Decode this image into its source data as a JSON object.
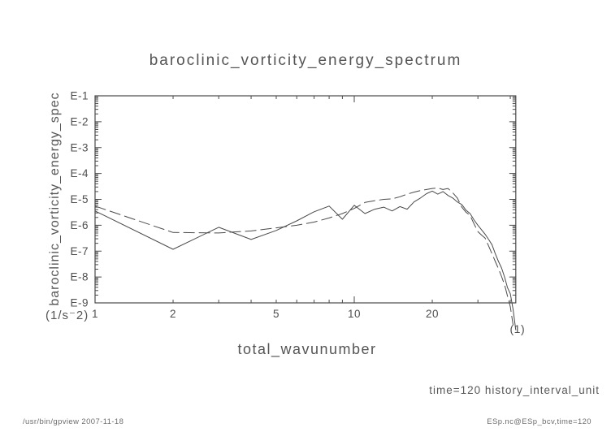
{
  "page": {
    "background": "#ffffff",
    "line_color": "#4a4a4a",
    "text_color": "#555555"
  },
  "footer": {
    "left": "/usr/bin/gpview  2007-11-18",
    "right": "ESp.nc@ESp_bcv,time=120"
  },
  "chart_data": {
    "type": "line",
    "title": "baroclinic_vorticity_energy_spectrum",
    "xlabel": "total_wavunumber",
    "ylabel": "baroclinic_vorticity_energy_spec",
    "x_unit_label": "(1)",
    "y_unit_label": "(1/s⁻2)",
    "annotation": "time=120 history_interval_unit",
    "x_scale": "log",
    "y_scale": "log",
    "x_range": [
      1,
      42
    ],
    "y_range_exponents": [
      -1,
      -9
    ],
    "grid": false,
    "legend": "none",
    "x_tick_labels": [
      {
        "label": "1",
        "value": 1
      },
      {
        "label": "2",
        "value": 2
      },
      {
        "label": "5",
        "value": 5
      },
      {
        "label": "10",
        "value": 10
      },
      {
        "label": "20",
        "value": 20
      }
    ],
    "x_major_ticks": [
      10
    ],
    "x_minor_ticks": [
      2,
      3,
      4,
      5,
      6,
      7,
      8,
      9,
      20,
      30,
      40
    ],
    "y_tick_labels": [
      {
        "label": "E-1",
        "exponent": -1
      },
      {
        "label": "E-2",
        "exponent": -2
      },
      {
        "label": "E-3",
        "exponent": -3
      },
      {
        "label": "E-4",
        "exponent": -4
      },
      {
        "label": "E-5",
        "exponent": -5
      },
      {
        "label": "E-6",
        "exponent": -6
      },
      {
        "label": "E-7",
        "exponent": -7
      },
      {
        "label": "E-8",
        "exponent": -8
      },
      {
        "label": "E-9",
        "exponent": -9
      }
    ],
    "series": [
      {
        "name": "solid-line-series",
        "line_style": "solid",
        "color": "#4a4a4a",
        "points_format": "[total_wavunumber, log10(energy)]",
        "points": [
          [
            1,
            -5.45
          ],
          [
            2,
            -6.93
          ],
          [
            3,
            -6.08
          ],
          [
            4,
            -6.55
          ],
          [
            5,
            -6.2
          ],
          [
            6,
            -5.83
          ],
          [
            7,
            -5.48
          ],
          [
            8,
            -5.26
          ],
          [
            9,
            -5.77
          ],
          [
            10,
            -5.23
          ],
          [
            11,
            -5.55
          ],
          [
            12,
            -5.38
          ],
          [
            13,
            -5.3
          ],
          [
            14,
            -5.45
          ],
          [
            15,
            -5.28
          ],
          [
            16,
            -5.38
          ],
          [
            17,
            -5.1
          ],
          [
            18,
            -4.95
          ],
          [
            19,
            -4.78
          ],
          [
            20,
            -4.68
          ],
          [
            21,
            -4.8
          ],
          [
            22,
            -4.7
          ],
          [
            23,
            -4.85
          ],
          [
            24,
            -4.95
          ],
          [
            25,
            -5.1
          ],
          [
            26,
            -5.2
          ],
          [
            27,
            -5.42
          ],
          [
            28,
            -5.55
          ],
          [
            29,
            -5.8
          ],
          [
            30,
            -6.0
          ],
          [
            31,
            -6.18
          ],
          [
            32,
            -6.35
          ],
          [
            33,
            -6.55
          ],
          [
            34,
            -6.75
          ],
          [
            35,
            -7.1
          ],
          [
            36,
            -7.4
          ],
          [
            37,
            -7.65
          ],
          [
            38,
            -8.0
          ],
          [
            39,
            -8.4
          ],
          [
            40,
            -8.65
          ],
          [
            41,
            -9.25
          ],
          [
            42,
            -10.05
          ]
        ]
      },
      {
        "name": "dashed-line-series",
        "line_style": "dashed",
        "color": "#4a4a4a",
        "points_format": "[total_wavunumber, log10(energy)]",
        "points": [
          [
            1,
            -5.26
          ],
          [
            2,
            -6.28
          ],
          [
            3,
            -6.3
          ],
          [
            4,
            -6.22
          ],
          [
            5,
            -6.1
          ],
          [
            6,
            -6.0
          ],
          [
            7,
            -5.88
          ],
          [
            8,
            -5.72
          ],
          [
            9,
            -5.55
          ],
          [
            10,
            -5.35
          ],
          [
            11,
            -5.12
          ],
          [
            12,
            -5.05
          ],
          [
            13,
            -5.0
          ],
          [
            14,
            -4.98
          ],
          [
            15,
            -4.9
          ],
          [
            16,
            -4.8
          ],
          [
            17,
            -4.72
          ],
          [
            18,
            -4.66
          ],
          [
            19,
            -4.62
          ],
          [
            20,
            -4.58
          ],
          [
            21,
            -4.56
          ],
          [
            22,
            -4.62
          ],
          [
            23,
            -4.58
          ],
          [
            24,
            -4.75
          ],
          [
            25,
            -4.95
          ],
          [
            26,
            -5.3
          ],
          [
            27,
            -5.5
          ],
          [
            28,
            -5.62
          ],
          [
            29,
            -5.95
          ],
          [
            30,
            -6.25
          ],
          [
            31,
            -6.38
          ],
          [
            32,
            -6.5
          ],
          [
            33,
            -6.8
          ],
          [
            34,
            -7.1
          ],
          [
            35,
            -7.4
          ],
          [
            36,
            -7.68
          ],
          [
            37,
            -7.98
          ],
          [
            38,
            -8.3
          ],
          [
            39,
            -8.72
          ],
          [
            40,
            -9.15
          ],
          [
            41,
            -9.85
          ]
        ]
      }
    ]
  }
}
